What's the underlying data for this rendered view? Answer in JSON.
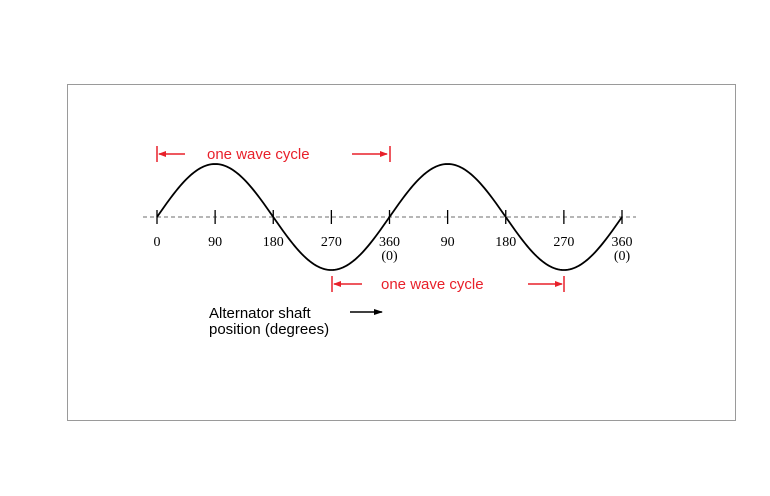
{
  "colors": {
    "accent": "#e8202a",
    "wave": "#000000",
    "axis": "#8a8a8a",
    "frame": "#9a9a9a"
  },
  "diagram": {
    "cycle_label_top": "one wave cycle",
    "cycle_label_bottom": "one wave cycle",
    "tick_labels": [
      "0",
      "90",
      "180",
      "270",
      "360",
      "90",
      "180",
      "270",
      "360"
    ],
    "tick_sublabels": [
      "",
      "",
      "",
      "",
      "(0)",
      "",
      "",
      "",
      "(0)"
    ],
    "shaft_label_line1": "Alternator shaft",
    "shaft_label_line2": "position (degrees)"
  }
}
